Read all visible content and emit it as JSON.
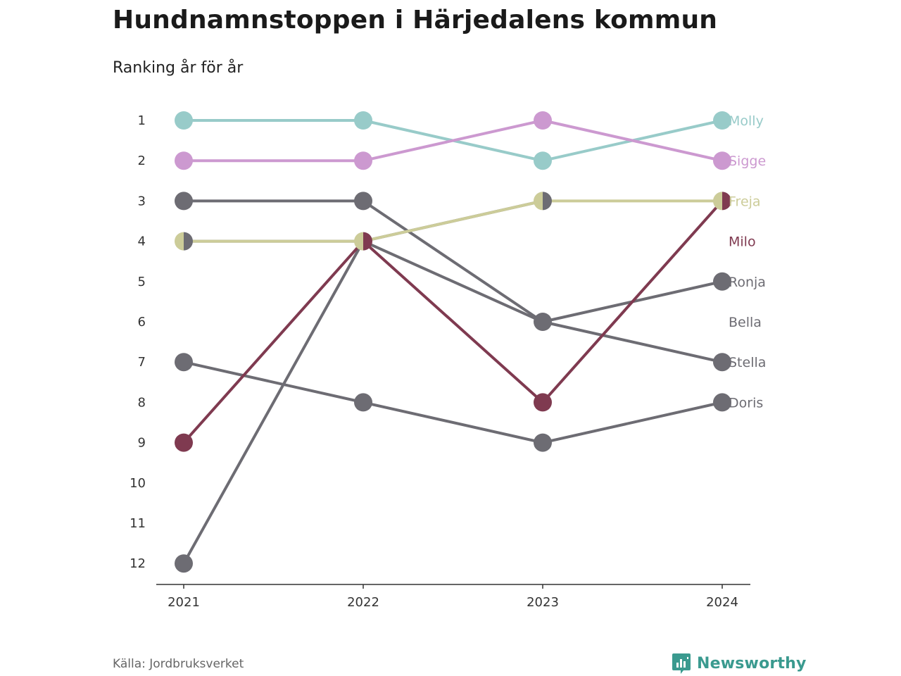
{
  "title": "Hundnamnstoppen i Härjedalens kommun",
  "subtitle": "Ranking år för år",
  "source": "Källa: Jordbruksverket",
  "brand": {
    "name": "Newsworthy",
    "icon": "newsworthy-logo-icon",
    "color": "#3a9a8f"
  },
  "chart_data": {
    "type": "line",
    "chart_kind": "bump",
    "x": [
      "2021",
      "2022",
      "2023",
      "2024"
    ],
    "y_ticks": [
      "1",
      "2",
      "3",
      "4",
      "5",
      "6",
      "7",
      "8",
      "9",
      "10",
      "11",
      "12"
    ],
    "ylim": [
      1,
      12
    ],
    "y_reversed": true,
    "grid": false,
    "series": [
      {
        "name": "Molly",
        "values": [
          1,
          1,
          2,
          1
        ],
        "color": "#98cbc9",
        "highlight": true
      },
      {
        "name": "Sigge",
        "values": [
          2,
          2,
          1,
          2
        ],
        "color": "#cc99d0",
        "highlight": true
      },
      {
        "name": "Freja",
        "values": [
          4,
          4,
          3,
          3
        ],
        "color": "#cccc99",
        "highlight": true
      },
      {
        "name": "Milo",
        "values": [
          9,
          4,
          8,
          3
        ],
        "color": "#7f3a50",
        "highlight": true
      },
      {
        "name": "Ronja",
        "values": [
          3,
          3,
          6,
          5
        ],
        "color": "#6d6c73",
        "highlight": false
      },
      {
        "name": "Bella",
        "values": [
          4,
          4,
          3,
          null
        ],
        "color": "#6d6c73",
        "highlight": false
      },
      {
        "name": "Stella",
        "values": [
          12,
          4,
          6,
          7
        ],
        "color": "#6d6c73",
        "highlight": false
      },
      {
        "name": "Doris",
        "values": [
          7,
          8,
          9,
          8
        ],
        "color": "#6d6c73",
        "highlight": false
      }
    ],
    "end_labels": [
      {
        "name": "Molly",
        "rank": 1,
        "color": "#98cbc9"
      },
      {
        "name": "Sigge",
        "rank": 2,
        "color": "#cc99d0"
      },
      {
        "name": "Freja",
        "rank": 3,
        "color": "#cccc99"
      },
      {
        "name": "Milo",
        "rank": 4,
        "color": "#7f3a50"
      },
      {
        "name": "Ronja",
        "rank": 5,
        "color": "#6d6c73"
      },
      {
        "name": "Bella",
        "rank": 6,
        "color": "#6d6c73"
      },
      {
        "name": "Stella",
        "rank": 7,
        "color": "#6d6c73"
      },
      {
        "name": "Doris",
        "rank": 8,
        "color": "#6d6c73"
      }
    ]
  }
}
